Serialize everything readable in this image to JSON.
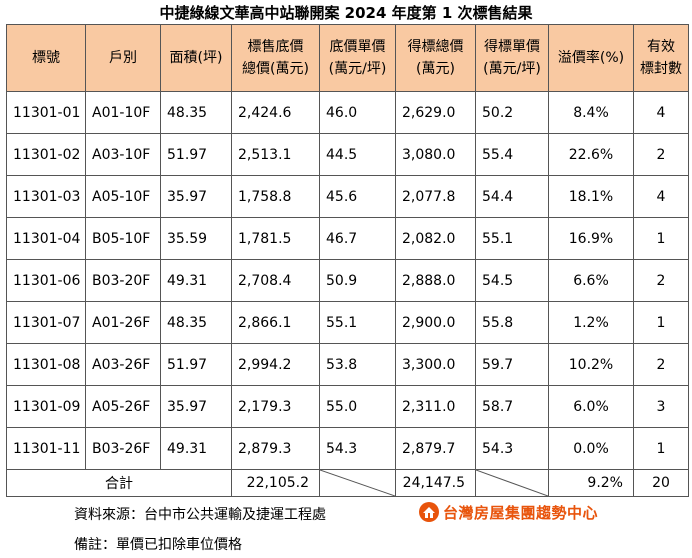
{
  "title": "中捷綠線文華高中站聯開案 2024 年度第 1 次標售結果",
  "headers": [
    {
      "line1": "標號",
      "line2": ""
    },
    {
      "line1": "戶別",
      "line2": ""
    },
    {
      "line1": "面積(坪)",
      "line2": ""
    },
    {
      "line1": "標售底價",
      "line2": "總價(萬元)"
    },
    {
      "line1": "底價單價",
      "line2": "(萬元/坪)"
    },
    {
      "line1": "得標總價",
      "line2": "(萬元)"
    },
    {
      "line1": "得標單價",
      "line2": "(萬元/坪)"
    },
    {
      "line1": "溢價率(%)",
      "line2": ""
    },
    {
      "line1": "有效",
      "line2": "標封數"
    }
  ],
  "rows": [
    [
      "11301-01",
      "A01-10F",
      "48.35",
      "2,424.6",
      "46.0",
      "2,629.0",
      "50.2",
      "8.4%",
      "4"
    ],
    [
      "11301-02",
      "A03-10F",
      "51.97",
      "2,513.1",
      "44.5",
      "3,080.0",
      "55.4",
      "22.6%",
      "2"
    ],
    [
      "11301-03",
      "A05-10F",
      "35.97",
      "1,758.8",
      "45.6",
      "2,077.8",
      "54.4",
      "18.1%",
      "4"
    ],
    [
      "11301-04",
      "B05-10F",
      "35.59",
      "1,781.5",
      "46.7",
      "2,082.0",
      "55.1",
      "16.9%",
      "1"
    ],
    [
      "11301-06",
      "B03-20F",
      "49.31",
      "2,708.4",
      "50.9",
      "2,888.0",
      "54.5",
      "6.6%",
      "2"
    ],
    [
      "11301-07",
      "A01-26F",
      "48.35",
      "2,866.1",
      "55.1",
      "2,900.0",
      "55.8",
      "1.2%",
      "1"
    ],
    [
      "11301-08",
      "A03-26F",
      "51.97",
      "2,994.2",
      "53.8",
      "3,300.0",
      "59.7",
      "10.2%",
      "2"
    ],
    [
      "11301-09",
      "A05-26F",
      "35.97",
      "2,179.3",
      "55.0",
      "2,311.0",
      "58.7",
      "6.0%",
      "3"
    ],
    [
      "11301-11",
      "B03-26F",
      "49.31",
      "2,879.3",
      "54.3",
      "2,879.7",
      "54.3",
      "0.0%",
      "1"
    ]
  ],
  "total": {
    "label": "合計",
    "base_total": "22,105.2",
    "win_total": "24,147.5",
    "premium": "9.2%",
    "bids": "20"
  },
  "source": "資料來源：台中市公共運輸及捷運工程處",
  "note": "備註：單價已扣除車位價格",
  "logo": {
    "text": "台灣房屋集團趨勢中心",
    "icon": "brand-logo-icon",
    "color": "#e8540c"
  },
  "colors": {
    "header_bg": "#f9c9a2",
    "border": "#555555"
  }
}
